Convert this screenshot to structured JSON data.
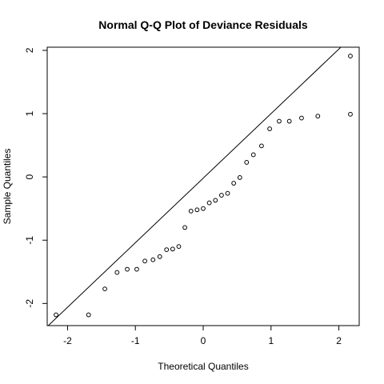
{
  "chart_data": {
    "type": "scatter",
    "title": "Normal Q-Q Plot of Deviance Residuals",
    "xlabel": "Theoretical Quantiles",
    "ylabel": "Sample Quantiles",
    "xlim": [
      -2.3,
      2.3
    ],
    "ylim": [
      -2.35,
      2.05
    ],
    "xticks": [
      -2,
      -1,
      0,
      1,
      2
    ],
    "xtick_labels": [
      "-2",
      "-1",
      "0",
      "1",
      "2"
    ],
    "yticks": [
      -2,
      -1,
      0,
      1,
      2
    ],
    "ytick_labels": [
      "-2",
      "-1",
      "0",
      "1",
      "2"
    ],
    "grid": false,
    "series": [
      {
        "points": [
          [
            -2.17,
            -2.18
          ],
          [
            -1.69,
            -2.18
          ],
          [
            -1.45,
            -1.77
          ],
          [
            -1.27,
            -1.51
          ],
          [
            -1.12,
            -1.46
          ],
          [
            -0.98,
            -1.46
          ],
          [
            -0.86,
            -1.33
          ],
          [
            -0.74,
            -1.31
          ],
          [
            -0.64,
            -1.26
          ],
          [
            -0.54,
            -1.15
          ],
          [
            -0.45,
            -1.14
          ],
          [
            -0.36,
            -1.1
          ],
          [
            -0.27,
            -0.8
          ],
          [
            -0.18,
            -0.54
          ],
          [
            -0.09,
            -0.52
          ],
          [
            0.0,
            -0.5
          ],
          [
            0.09,
            -0.41
          ],
          [
            0.18,
            -0.37
          ],
          [
            0.27,
            -0.29
          ],
          [
            0.36,
            -0.26
          ],
          [
            0.45,
            -0.1
          ],
          [
            0.54,
            -0.01
          ],
          [
            0.64,
            0.23
          ],
          [
            0.74,
            0.35
          ],
          [
            0.86,
            0.49
          ],
          [
            0.98,
            0.76
          ],
          [
            1.12,
            0.88
          ],
          [
            1.27,
            0.88
          ],
          [
            1.45,
            0.93
          ],
          [
            1.69,
            0.96
          ],
          [
            2.17,
            0.99
          ],
          [
            2.17,
            1.91
          ]
        ]
      }
    ],
    "reference_line": {
      "intercept": -0.02,
      "slope": 1.02
    }
  }
}
